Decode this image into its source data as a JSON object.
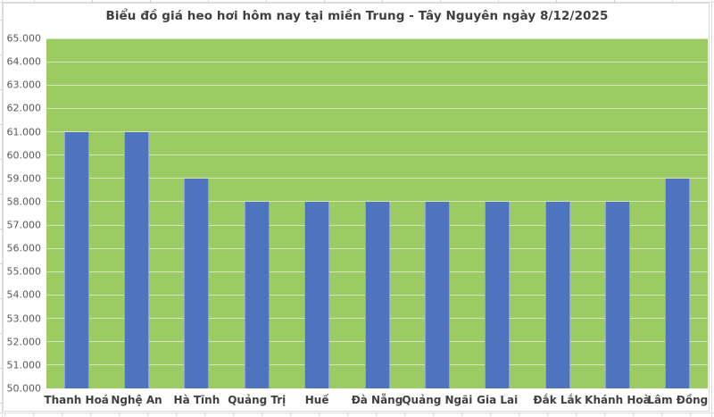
{
  "title": "Biểu đồ giá heo hơi hôm nay tại miền Trung - Tây Nguyên ngày 8/12/2025",
  "colors": {
    "bar": "#4e73bf",
    "plot_background": "#9cca63",
    "gridline": "rgba(255,255,255,0.55)",
    "title_text": "#3f3f3f",
    "y_axis_text": "#595959",
    "x_axis_text": "#404040",
    "sheet_gridline": "#dedede"
  },
  "chart_data": {
    "type": "bar",
    "title": "Biểu đồ giá heo hơi hôm nay tại miền Trung - Tây Nguyên ngày 8/12/2025",
    "xlabel": "",
    "ylabel": "",
    "legend": "none",
    "grid": "horizontal",
    "categories": [
      "Thanh Hoá",
      "Nghệ An",
      "Hà Tĩnh",
      "Quảng Trị",
      "Huế",
      "Đà Nẵng",
      "Quảng Ngãi",
      "Gia Lai",
      "Đắk Lắk",
      "Khánh Hoà",
      "Lâm Đồng"
    ],
    "values": [
      61000,
      61000,
      59000,
      58000,
      58000,
      58000,
      58000,
      58000,
      58000,
      58000,
      59000
    ],
    "ylim": [
      50000,
      65000
    ],
    "ytick_step": 1000,
    "yticks": [
      {
        "value": 65000,
        "label": "65.000"
      },
      {
        "value": 64000,
        "label": "64.000"
      },
      {
        "value": 63000,
        "label": "63.000"
      },
      {
        "value": 62000,
        "label": "62.000"
      },
      {
        "value": 61000,
        "label": "61.000"
      },
      {
        "value": 60000,
        "label": "60.000"
      },
      {
        "value": 59000,
        "label": "59.000"
      },
      {
        "value": 58000,
        "label": "58.000"
      },
      {
        "value": 57000,
        "label": "57.000"
      },
      {
        "value": 56000,
        "label": "56.000"
      },
      {
        "value": 55000,
        "label": "55.000"
      },
      {
        "value": 54000,
        "label": "54.000"
      },
      {
        "value": 53000,
        "label": "53.000"
      },
      {
        "value": 52000,
        "label": "52.000"
      },
      {
        "value": 51000,
        "label": "51.000"
      },
      {
        "value": 50000,
        "label": "50.000"
      }
    ]
  }
}
